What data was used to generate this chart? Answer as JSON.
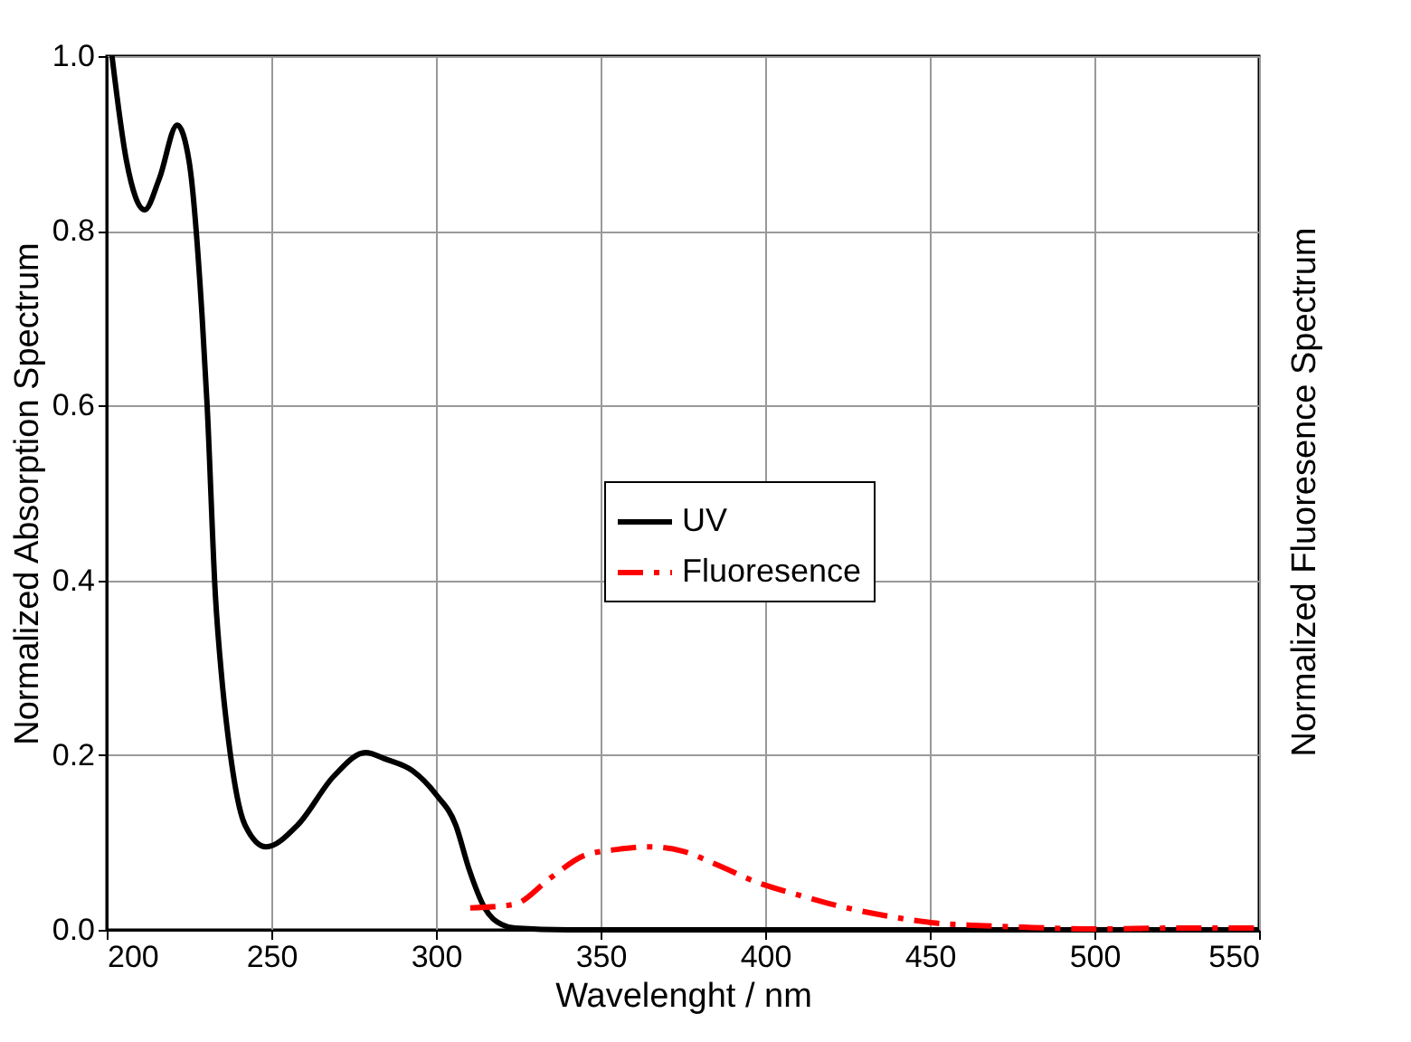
{
  "chart_data": {
    "type": "line",
    "xlabel": "Wavelenght / nm",
    "ylabel": "Normalized Absorption Spectrum",
    "y2label": "Normalized Fluoresence Spectrum",
    "xlim": [
      200,
      550
    ],
    "xticks": [
      200,
      250,
      300,
      350,
      400,
      450,
      500,
      550
    ],
    "ylim": [
      0,
      1.0
    ],
    "yticks": [
      {
        "value": 0,
        "label": "0.0"
      },
      {
        "value": 0.2,
        "label": "0.2"
      },
      {
        "value": 0.4,
        "label": "0.4"
      },
      {
        "value": 0.6,
        "label": "0.6"
      },
      {
        "value": 0.8,
        "label": "0.8"
      },
      {
        "value": 1.0,
        "label": "1.0"
      }
    ],
    "grid": true,
    "legend": "center",
    "marker": "none",
    "series": [
      {
        "name": "UV",
        "color": "#000000",
        "line_style": "solid",
        "x": [
          201.6,
          206,
          211.5,
          216,
          221.4,
          225,
          229,
          230.5,
          233,
          235,
          237,
          242,
          248.4,
          258,
          269,
          278.6,
          285,
          292.9,
          300,
          306,
          310,
          314.8,
          320,
          324,
          340,
          400,
          550
        ],
        "values": [
          1.0,
          0.88,
          0.824,
          0.86,
          0.921,
          0.88,
          0.7,
          0.6,
          0.383,
          0.286,
          0.217,
          0.12,
          0.095,
          0.12,
          0.176,
          0.203,
          0.195,
          0.182,
          0.155,
          0.12,
          0.07,
          0.025,
          0.006,
          0.002,
          0.0,
          0.0,
          0.0
        ]
      },
      {
        "name": "Fluoresence",
        "color": "#ff0000",
        "line_style": "dashed",
        "x": [
          310.4,
          323.6,
          335,
          345,
          355,
          364.8,
          375,
          385,
          397.8,
          410,
          425,
          440,
          451,
          465,
          478.6,
          500,
          525,
          550
        ],
        "values": [
          0.025,
          0.029,
          0.06,
          0.085,
          0.092,
          0.095,
          0.09,
          0.075,
          0.054,
          0.04,
          0.025,
          0.014,
          0.008,
          0.005,
          0.003,
          0.001,
          0.002,
          0.002
        ]
      }
    ]
  }
}
